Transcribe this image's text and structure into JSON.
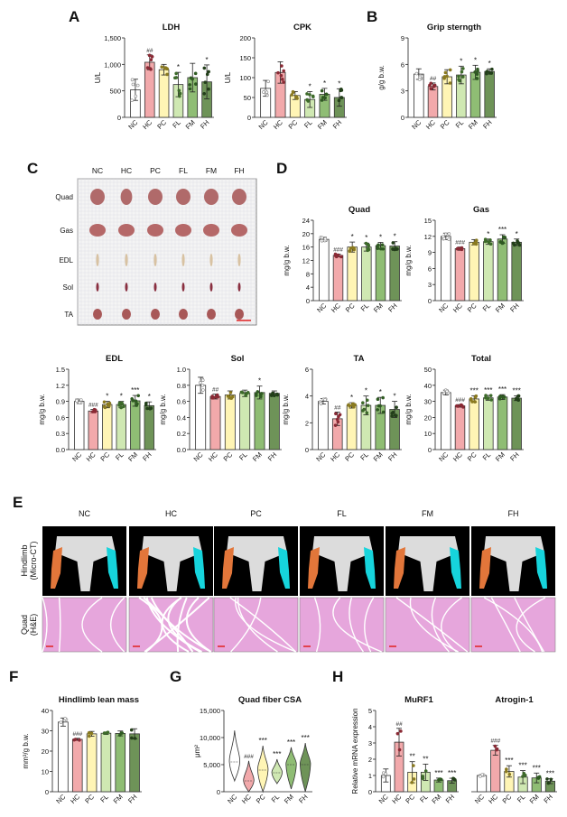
{
  "groups": [
    "NC",
    "HC",
    "PC",
    "FL",
    "FM",
    "FH"
  ],
  "group_colors": {
    "NC": "#ffffff",
    "HC": "#f2a9ab",
    "PC": "#fff5b5",
    "FL": "#cfe8b2",
    "FM": "#8fbd74",
    "FH": "#6e9358"
  },
  "dot_colors": {
    "NC": "#888888",
    "HC": "#8a2a35",
    "PC": "#8a7a20",
    "FL": "#3d6a2a",
    "FM": "#2f5a22",
    "FH": "#233f1a"
  },
  "panel_letters": [
    "A",
    "B",
    "C",
    "D",
    "E",
    "F",
    "G",
    "H"
  ],
  "panel_c": {
    "rows": [
      "Quad",
      "Gas",
      "EDL",
      "Sol",
      "TA"
    ],
    "cols": [
      "NC",
      "HC",
      "PC",
      "FL",
      "FM",
      "FH"
    ]
  },
  "panel_e": {
    "cols": [
      "NC",
      "HC",
      "PC",
      "FL",
      "FM",
      "FH"
    ],
    "row_labels": [
      "Hindlimb (Micro-CT)",
      "Quad (H&E)"
    ],
    "row_label_lines": [
      [
        "Hindlimb",
        "(Micro-CT)"
      ],
      [
        "Quad",
        "(H&E)"
      ]
    ]
  },
  "chart_data": [
    {
      "id": "ldh",
      "type": "bar",
      "title": "LDH",
      "ylabel": "U/L",
      "ylim": [
        0,
        1500
      ],
      "ticks": [
        0,
        500,
        1000,
        1500
      ],
      "tick_labels": [
        "0",
        "500",
        "1,000",
        "1,500"
      ],
      "categories": [
        "NC",
        "HC",
        "PC",
        "FL",
        "FM",
        "FH"
      ],
      "values": [
        520,
        1040,
        900,
        620,
        750,
        670
      ],
      "sd": [
        200,
        140,
        100,
        230,
        270,
        320
      ],
      "sig": [
        "",
        "##",
        "",
        "*",
        "",
        "*"
      ]
    },
    {
      "id": "cpk",
      "type": "bar",
      "title": "CPK",
      "ylabel": "U/L",
      "ylim": [
        0,
        200
      ],
      "ticks": [
        0,
        50,
        100,
        150,
        200
      ],
      "tick_labels": [
        "0",
        "50",
        "100",
        "150",
        "200"
      ],
      "categories": [
        "NC",
        "HC",
        "PC",
        "FL",
        "FM",
        "FH"
      ],
      "values": [
        73,
        113,
        55,
        45,
        58,
        50
      ],
      "sd": [
        20,
        27,
        10,
        20,
        15,
        22
      ],
      "sig": [
        "",
        "",
        "",
        "*",
        "*",
        "*"
      ]
    },
    {
      "id": "grip",
      "type": "bar",
      "title": "Grip sterngth",
      "ylabel": "g/g b.w.",
      "ylim": [
        0,
        9
      ],
      "ticks": [
        0,
        3,
        6,
        9
      ],
      "tick_labels": [
        "0",
        "3",
        "6",
        "9"
      ],
      "categories": [
        "NC",
        "HC",
        "PC",
        "FL",
        "FM",
        "FH"
      ],
      "values": [
        4.9,
        3.5,
        4.6,
        4.8,
        5.1,
        5.2
      ],
      "sd": [
        0.6,
        0.4,
        0.8,
        1.0,
        0.8,
        0.3
      ],
      "sig": [
        "",
        "##",
        "",
        "*",
        "*",
        "*"
      ]
    },
    {
      "id": "quad",
      "type": "bar",
      "title": "Quad",
      "ylabel": "mg/g b.w.",
      "ylim": [
        0,
        24
      ],
      "ticks": [
        0,
        4,
        8,
        12,
        16,
        20,
        24
      ],
      "tick_labels": [
        "0",
        "4",
        "8",
        "12",
        "16",
        "20",
        "24"
      ],
      "categories": [
        "NC",
        "HC",
        "PC",
        "FL",
        "FM",
        "FH"
      ],
      "values": [
        18.3,
        13.5,
        16.0,
        16.0,
        16.4,
        16.3
      ],
      "sd": [
        0.6,
        0.4,
        1.5,
        1.2,
        1.0,
        1.3
      ],
      "sig": [
        "",
        "###",
        "*",
        "*",
        "*",
        "*"
      ]
    },
    {
      "id": "gas",
      "type": "bar",
      "title": "Gas",
      "ylabel": "mg/g b.w.",
      "ylim": [
        0,
        15
      ],
      "ticks": [
        0,
        3,
        6,
        9,
        12,
        15
      ],
      "tick_labels": [
        "0",
        "3",
        "6",
        "9",
        "12",
        "15"
      ],
      "categories": [
        "NC",
        "HC",
        "PC",
        "FL",
        "FM",
        "FH"
      ],
      "values": [
        12.0,
        9.7,
        10.9,
        11.0,
        11.5,
        10.9
      ],
      "sd": [
        0.6,
        0.3,
        0.5,
        0.5,
        0.8,
        0.6
      ],
      "sig": [
        "",
        "###",
        "",
        "*",
        "***",
        "*"
      ]
    },
    {
      "id": "edl",
      "type": "bar",
      "title": "EDL",
      "ylabel": "mg/g b.w.",
      "ylim": [
        0,
        1.5
      ],
      "ticks": [
        0,
        0.3,
        0.6,
        0.9,
        1.2,
        1.5
      ],
      "tick_labels": [
        "0.0",
        "0.3",
        "0.6",
        "0.9",
        "1.2",
        "1.5"
      ],
      "categories": [
        "NC",
        "HC",
        "PC",
        "FL",
        "FM",
        "FH"
      ],
      "values": [
        0.9,
        0.72,
        0.84,
        0.84,
        0.91,
        0.82
      ],
      "sd": [
        0.04,
        0.03,
        0.06,
        0.06,
        0.1,
        0.07
      ],
      "sig": [
        "",
        "###",
        "*",
        "*",
        "***",
        "*"
      ]
    },
    {
      "id": "sol",
      "type": "bar",
      "title": "Sol",
      "ylabel": "mg/g b.w.",
      "ylim": [
        0,
        1.0
      ],
      "ticks": [
        0,
        0.2,
        0.4,
        0.6,
        0.8,
        1.0
      ],
      "tick_labels": [
        "0.0",
        "0.2",
        "0.4",
        "0.6",
        "0.8",
        "1.0"
      ],
      "categories": [
        "NC",
        "HC",
        "PC",
        "FL",
        "FM",
        "FH"
      ],
      "values": [
        0.8,
        0.66,
        0.68,
        0.7,
        0.71,
        0.7
      ],
      "sd": [
        0.1,
        0.03,
        0.05,
        0.04,
        0.08,
        0.03
      ],
      "sig": [
        "",
        "##",
        "",
        "",
        "*",
        ""
      ]
    },
    {
      "id": "ta",
      "type": "bar",
      "title": "TA",
      "ylabel": "mg/g b.w.",
      "ylim": [
        0,
        6
      ],
      "ticks": [
        0,
        2,
        4,
        6
      ],
      "tick_labels": [
        "0",
        "2",
        "4",
        "6"
      ],
      "categories": [
        "NC",
        "HC",
        "PC",
        "FL",
        "FM",
        "FH"
      ],
      "values": [
        3.6,
        2.3,
        3.3,
        3.3,
        3.3,
        3.0
      ],
      "sd": [
        0.2,
        0.5,
        0.2,
        0.7,
        0.6,
        0.6
      ],
      "sig": [
        "",
        "##",
        "*",
        "*",
        "*",
        "*"
      ]
    },
    {
      "id": "total",
      "type": "bar",
      "title": "Total",
      "ylabel": "mg/g b.w.",
      "ylim": [
        0,
        50
      ],
      "ticks": [
        0,
        10,
        20,
        30,
        40,
        50
      ],
      "tick_labels": [
        "0",
        "10",
        "20",
        "30",
        "40",
        "50"
      ],
      "categories": [
        "NC",
        "HC",
        "PC",
        "FL",
        "FM",
        "FH"
      ],
      "values": [
        35.5,
        27.2,
        31.5,
        32.2,
        32.7,
        32.0
      ],
      "sd": [
        1.5,
        0.8,
        2.0,
        1.5,
        1.5,
        1.5
      ],
      "sig": [
        "",
        "###",
        "***",
        "***",
        "***",
        "***"
      ]
    },
    {
      "id": "lean",
      "type": "bar",
      "title": "Hindlimb lean mass",
      "ylabel": "mm³/g b.w.",
      "ylim": [
        0,
        40
      ],
      "ticks": [
        0,
        10,
        20,
        30,
        40
      ],
      "tick_labels": [
        "0",
        "10",
        "20",
        "30",
        "40"
      ],
      "categories": [
        "NC",
        "HC",
        "PC",
        "FL",
        "FM",
        "FH"
      ],
      "values": [
        34.3,
        25.8,
        28.5,
        28.8,
        28.7,
        28.5
      ],
      "sd": [
        2.0,
        0.5,
        1.2,
        0.6,
        1.2,
        2.5
      ],
      "sig": [
        "",
        "###",
        "",
        "",
        "",
        ""
      ]
    },
    {
      "id": "csa",
      "type": "violin",
      "title": "Quad fiber CSA",
      "ylabel": "μm²",
      "ylim": [
        0,
        15000
      ],
      "ticks": [
        0,
        5000,
        10000,
        15000
      ],
      "tick_labels": [
        "0",
        "5,000",
        "10,000",
        "15,000"
      ],
      "categories": [
        "NC",
        "HC",
        "PC",
        "FL",
        "FM",
        "FH"
      ],
      "median": [
        5500,
        2000,
        4000,
        3500,
        5000,
        5000
      ],
      "min": [
        2000,
        0,
        0,
        1500,
        500,
        0
      ],
      "max": [
        11300,
        5700,
        8500,
        6000,
        8200,
        9000
      ],
      "sig": [
        "",
        "###",
        "***",
        "***",
        "***",
        "***"
      ]
    },
    {
      "id": "murf1",
      "type": "bar",
      "title": "MuRF1",
      "ylabel": "Relative mRNA expression",
      "ylim": [
        0,
        5
      ],
      "ticks": [
        0,
        1,
        2,
        3,
        4,
        5
      ],
      "tick_labels": [
        "0",
        "1",
        "2",
        "3",
        "4",
        "5"
      ],
      "categories": [
        "NC",
        "HC",
        "PC",
        "FL",
        "FM",
        "FH"
      ],
      "values": [
        1.0,
        3.05,
        1.2,
        1.2,
        0.72,
        0.68
      ],
      "sd": [
        0.4,
        0.85,
        0.65,
        0.5,
        0.12,
        0.15
      ],
      "sig": [
        "",
        "##",
        "**",
        "**",
        "***",
        "***"
      ]
    },
    {
      "id": "atrogin",
      "type": "bar",
      "title": "Atrogin-1",
      "ylabel": "",
      "ylim": [
        0,
        5
      ],
      "ticks": [],
      "tick_labels": [],
      "categories": [
        "NC",
        "HC",
        "PC",
        "FL",
        "FM",
        "FH"
      ],
      "values": [
        1.0,
        2.55,
        1.25,
        0.9,
        0.85,
        0.65
      ],
      "sd": [
        0.05,
        0.3,
        0.35,
        0.4,
        0.3,
        0.15
      ],
      "sig": [
        "",
        "###",
        "***",
        "***",
        "***",
        "***"
      ]
    }
  ]
}
